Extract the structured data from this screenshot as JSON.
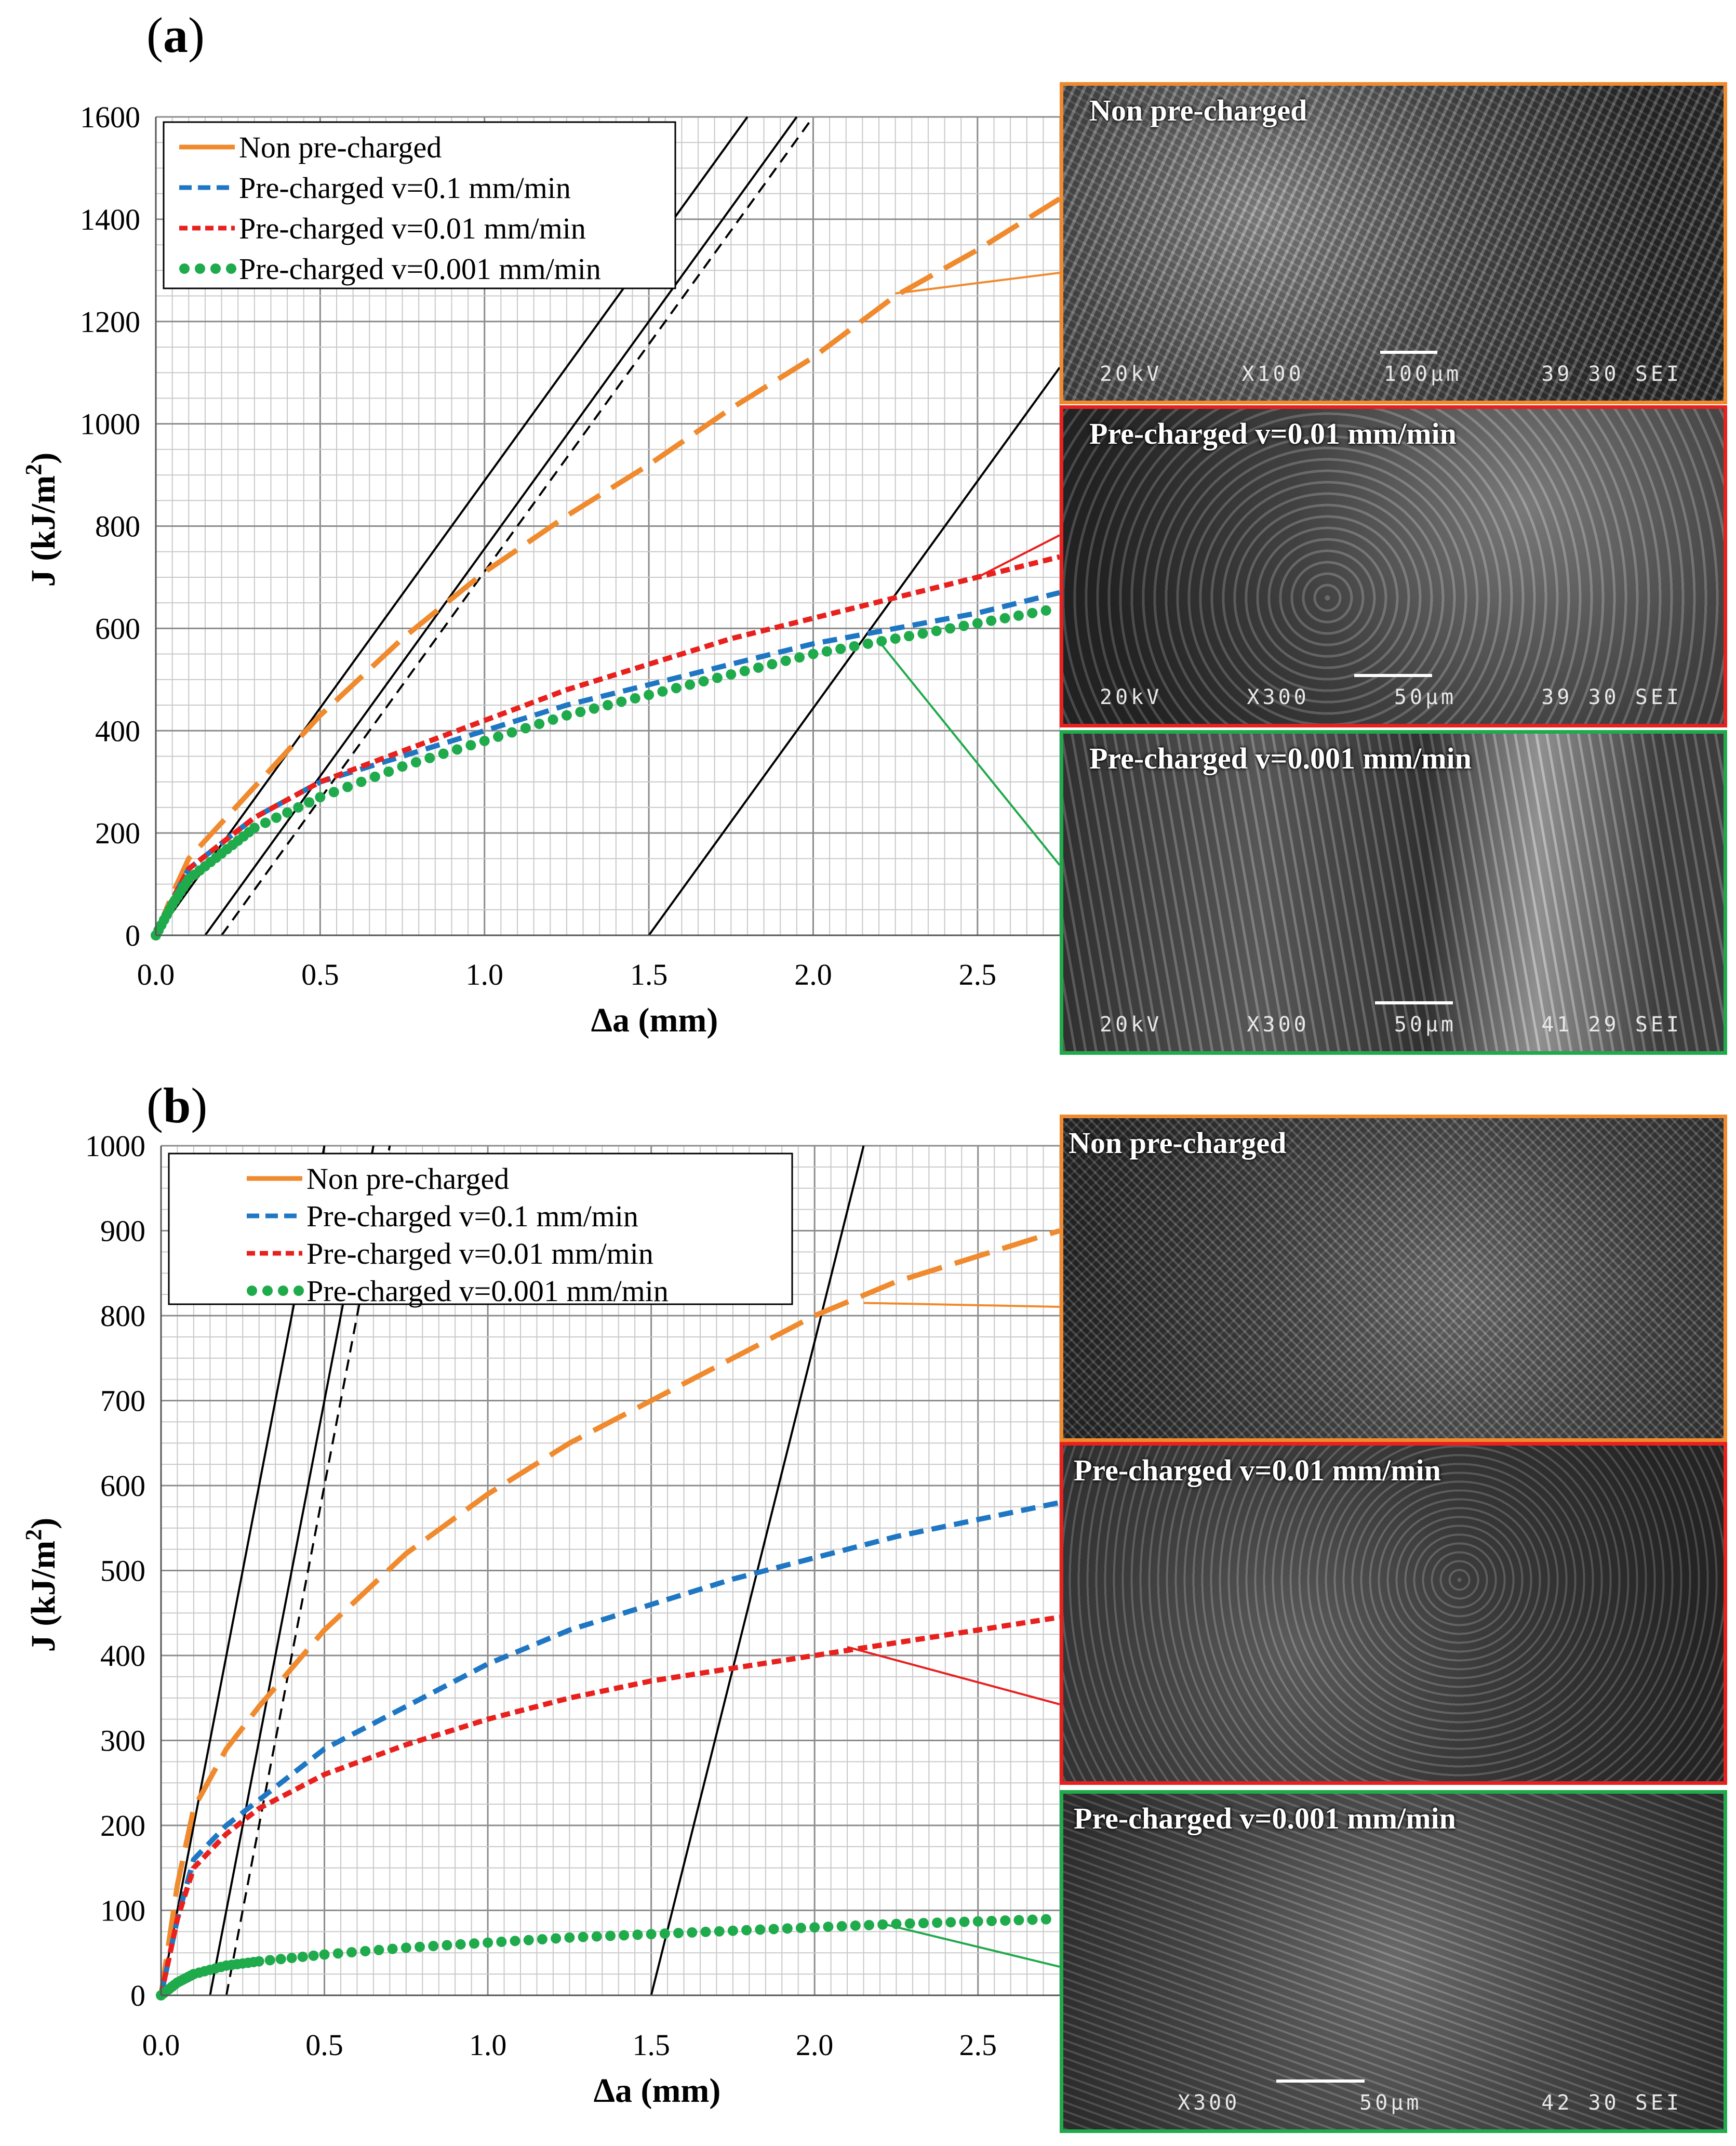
{
  "colors": {
    "non_pre_charged": "#f08a2e",
    "v_0_1": "#1f77c4",
    "v_0_01": "#e8201e",
    "v_0_001": "#1faa4c",
    "grid": "#a8a8a8",
    "construction": "#000000"
  },
  "panels": [
    {
      "label": "a",
      "y_axis_label_main": "J (kJ/m",
      "y_axis_label_sup": "2",
      "y_axis_label_end": ")",
      "x_axis_label": "Δa (mm)",
      "x_ticks": [
        "0.0",
        "0.5",
        "1.0",
        "1.5",
        "2.0",
        "2.5"
      ],
      "y_ticks": [
        "0",
        "200",
        "400",
        "600",
        "800",
        "1000",
        "1200",
        "1400",
        "1600"
      ],
      "legend": [
        "Non pre-charged",
        "Pre-charged v=0.1 mm/min",
        "Pre-charged v=0.01 mm/min",
        "Pre-charged v=0.001 mm/min"
      ],
      "images": [
        {
          "title": "Non pre-charged",
          "bar": [
            "20kV",
            "X100",
            "100μm",
            "39 30 SEI"
          ],
          "scale_label": "100μm"
        },
        {
          "title": "Pre-charged v=0.01 mm/min",
          "bar": [
            "20kV",
            "X300",
            "50μm",
            "39 30 SEI"
          ],
          "scale_label": "50μm"
        },
        {
          "title": "Pre-charged v=0.001 mm/min",
          "bar": [
            "20kV",
            "X300",
            "50μm",
            "41 29 SEI"
          ],
          "scale_label": "50μm"
        }
      ]
    },
    {
      "label": "b",
      "y_axis_label_main": "J (kJ/m",
      "y_axis_label_sup": "2",
      "y_axis_label_end": ")",
      "x_axis_label": "Δa (mm)",
      "x_ticks": [
        "0.0",
        "0.5",
        "1.0",
        "1.5",
        "2.0",
        "2.5"
      ],
      "y_ticks": [
        "0",
        "100",
        "200",
        "300",
        "400",
        "500",
        "600",
        "700",
        "800",
        "900",
        "1000"
      ],
      "legend": [
        "Non pre-charged",
        "Pre-charged v=0.1 mm/min",
        "Pre-charged v=0.01 mm/min",
        "Pre-charged v=0.001 mm/min"
      ],
      "images": [
        {
          "title": "Non pre-charged",
          "bar": [
            "",
            "",
            "",
            ""
          ],
          "scale_label": ""
        },
        {
          "title": "Pre-charged v=0.01 mm/min",
          "bar": [
            "",
            "",
            "",
            ""
          ],
          "scale_label": ""
        },
        {
          "title": "Pre-charged v=0.001 mm/min",
          "bar": [
            "",
            "X300",
            "50μm",
            "42 30 SEI"
          ],
          "scale_label": "50μm"
        }
      ]
    }
  ],
  "chart_data": [
    {
      "type": "line",
      "panel": "a",
      "xlabel": "Δa (mm)",
      "ylabel": "J (kJ/m2)",
      "xlim": [
        0,
        2.75
      ],
      "ylim": [
        0,
        1600
      ],
      "grid": true,
      "legend_position": "top-left",
      "series": [
        {
          "name": "Non pre-charged",
          "style": "long-dash",
          "x": [
            0,
            0.05,
            0.1,
            0.2,
            0.3,
            0.5,
            0.75,
            1.0,
            1.25,
            1.5,
            1.75,
            2.0,
            2.25,
            2.5,
            2.75
          ],
          "y": [
            0,
            80,
            150,
            220,
            290,
            430,
            580,
            710,
            820,
            920,
            1030,
            1130,
            1250,
            1340,
            1440
          ]
        },
        {
          "name": "Pre-charged v=0.1 mm/min",
          "style": "dash",
          "x": [
            0,
            0.05,
            0.1,
            0.2,
            0.3,
            0.5,
            0.75,
            1.0,
            1.25,
            1.5,
            1.75,
            2.0,
            2.25,
            2.5,
            2.75
          ],
          "y": [
            0,
            70,
            130,
            180,
            230,
            300,
            350,
            400,
            450,
            490,
            530,
            570,
            600,
            630,
            670
          ]
        },
        {
          "name": "Pre-charged v=0.01 mm/min",
          "style": "short-dash",
          "x": [
            0,
            0.05,
            0.1,
            0.2,
            0.3,
            0.5,
            0.75,
            1.0,
            1.25,
            1.5,
            1.75,
            2.0,
            2.25,
            2.5,
            2.75
          ],
          "y": [
            0,
            70,
            130,
            180,
            230,
            300,
            360,
            420,
            480,
            530,
            580,
            620,
            660,
            700,
            740
          ]
        },
        {
          "name": "Pre-charged v=0.001 mm/min",
          "style": "dots",
          "x": [
            0,
            0.05,
            0.1,
            0.2,
            0.3,
            0.5,
            0.75,
            1.0,
            1.25,
            1.5,
            1.75,
            2.0,
            2.25,
            2.5,
            2.75
          ],
          "y": [
            0,
            60,
            110,
            160,
            210,
            270,
            330,
            380,
            430,
            470,
            510,
            550,
            580,
            610,
            640
          ]
        }
      ],
      "construction_lines": [
        {
          "style": "solid",
          "x": [
            0,
            1.8
          ],
          "y": [
            0,
            1600
          ]
        },
        {
          "style": "solid",
          "x": [
            0.15,
            1.95
          ],
          "y": [
            0,
            1600
          ]
        },
        {
          "style": "dash",
          "x": [
            0.2,
            2.0
          ],
          "y": [
            0,
            1600
          ]
        },
        {
          "style": "solid",
          "x": [
            1.5,
            2.75
          ],
          "y": [
            0,
            1110
          ]
        }
      ]
    },
    {
      "type": "line",
      "panel": "b",
      "xlabel": "Δa (mm)",
      "ylabel": "J (kJ/m2)",
      "xlim": [
        0,
        2.75
      ],
      "ylim": [
        0,
        1000
      ],
      "grid": true,
      "legend_position": "top-left",
      "series": [
        {
          "name": "Non pre-charged",
          "style": "long-dash",
          "x": [
            0,
            0.05,
            0.1,
            0.2,
            0.3,
            0.5,
            0.75,
            1.0,
            1.25,
            1.5,
            1.75,
            2.0,
            2.25,
            2.5,
            2.75
          ],
          "y": [
            0,
            130,
            220,
            290,
            340,
            430,
            520,
            590,
            650,
            700,
            750,
            800,
            840,
            870,
            900
          ]
        },
        {
          "name": "Pre-charged v=0.1 mm/min",
          "style": "dash",
          "x": [
            0,
            0.05,
            0.1,
            0.2,
            0.3,
            0.5,
            0.75,
            1.0,
            1.25,
            1.5,
            1.75,
            2.0,
            2.25,
            2.5,
            2.75
          ],
          "y": [
            0,
            90,
            160,
            200,
            230,
            290,
            340,
            390,
            430,
            460,
            490,
            515,
            540,
            560,
            580
          ]
        },
        {
          "name": "Pre-charged v=0.01 mm/min",
          "style": "short-dash",
          "x": [
            0,
            0.05,
            0.1,
            0.2,
            0.3,
            0.5,
            0.75,
            1.0,
            1.25,
            1.5,
            1.75,
            2.0,
            2.25,
            2.5,
            2.75
          ],
          "y": [
            0,
            90,
            150,
            190,
            220,
            260,
            295,
            325,
            350,
            370,
            385,
            400,
            415,
            430,
            445
          ]
        },
        {
          "name": "Pre-charged v=0.001 mm/min",
          "style": "dots",
          "x": [
            0,
            0.05,
            0.1,
            0.2,
            0.3,
            0.5,
            0.75,
            1.0,
            1.25,
            1.5,
            1.75,
            2.0,
            2.25,
            2.5,
            2.75
          ],
          "y": [
            0,
            15,
            25,
            35,
            40,
            48,
            56,
            62,
            68,
            72,
            76,
            80,
            84,
            87,
            90
          ]
        }
      ],
      "construction_lines": [
        {
          "style": "solid",
          "x": [
            0,
            0.5
          ],
          "y": [
            0,
            1000
          ]
        },
        {
          "style": "solid",
          "x": [
            0.15,
            0.65
          ],
          "y": [
            0,
            1000
          ]
        },
        {
          "style": "dash",
          "x": [
            0.2,
            0.7
          ],
          "y": [
            0,
            1000
          ]
        },
        {
          "style": "solid",
          "x": [
            1.5,
            2.15
          ],
          "y": [
            0,
            1000
          ]
        }
      ]
    }
  ]
}
